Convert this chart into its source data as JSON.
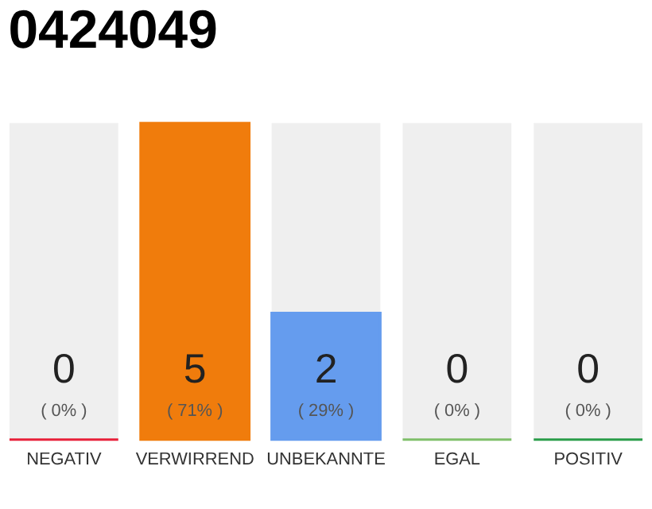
{
  "chart_data": {
    "type": "bar",
    "title": "0424049",
    "categories": [
      "NEGATIV",
      "VERWIRREND",
      "UNBEKANNTE",
      "EGAL",
      "POSITIV"
    ],
    "values": [
      0,
      5,
      2,
      0,
      0
    ],
    "colors": [
      "#e8203a",
      "#f07c0c",
      "#659cee",
      "#7fbf6a",
      "#2a9d4a"
    ],
    "data_labels": true,
    "annotations": [
      "( 0% )",
      "( 71% )",
      "( 29% )",
      "( 0% )",
      "( 0% )"
    ]
  }
}
